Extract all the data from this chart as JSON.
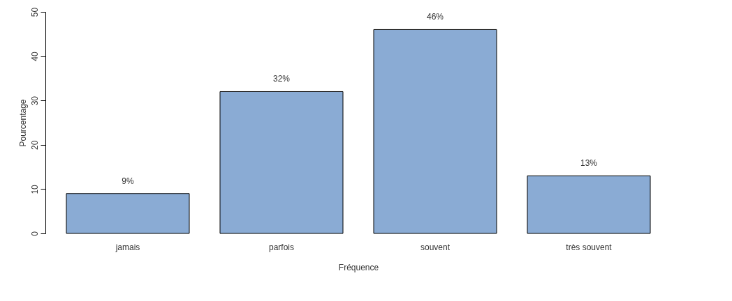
{
  "chart_data": {
    "type": "bar",
    "xlabel": "Fréquence",
    "ylabel": "Pourcentage",
    "categories": [
      "jamais",
      "parfois",
      "souvent",
      "très souvent"
    ],
    "values": [
      9,
      32,
      46,
      13
    ],
    "value_labels": [
      "9%",
      "32%",
      "46%",
      "13%"
    ],
    "color": "#8aabd4",
    "ylim": [
      0,
      50
    ],
    "yticks": [
      0,
      10,
      20,
      30,
      40,
      50
    ],
    "grid": false
  }
}
